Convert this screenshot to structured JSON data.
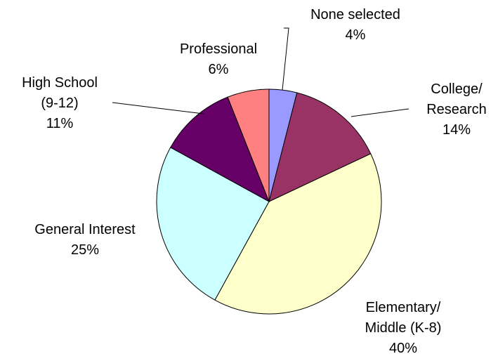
{
  "chart_data": {
    "type": "pie",
    "start_angle_deg": 0,
    "direction": "clockwise",
    "grid": false,
    "legend": "none",
    "slices": [
      {
        "key": "none",
        "lines": [
          "None selected"
        ],
        "percent_label": "4%",
        "value": 4,
        "color": "#9999FF"
      },
      {
        "key": "college",
        "lines": [
          "College/",
          "Research"
        ],
        "percent_label": "14%",
        "value": 14,
        "color": "#993366"
      },
      {
        "key": "elementary",
        "lines": [
          "Elementary/",
          "Middle (K-8)"
        ],
        "percent_label": "40%",
        "value": 40,
        "color": "#FFFFCC"
      },
      {
        "key": "general",
        "lines": [
          "General Interest"
        ],
        "percent_label": "25%",
        "value": 25,
        "color": "#CCFFFF"
      },
      {
        "key": "highschool",
        "lines": [
          "High School",
          "(9-12)"
        ],
        "percent_label": "11%",
        "value": 11,
        "color": "#660066"
      },
      {
        "key": "professional",
        "lines": [
          "Professional"
        ],
        "percent_label": "6%",
        "value": 6,
        "color": "#FF8080"
      }
    ]
  }
}
